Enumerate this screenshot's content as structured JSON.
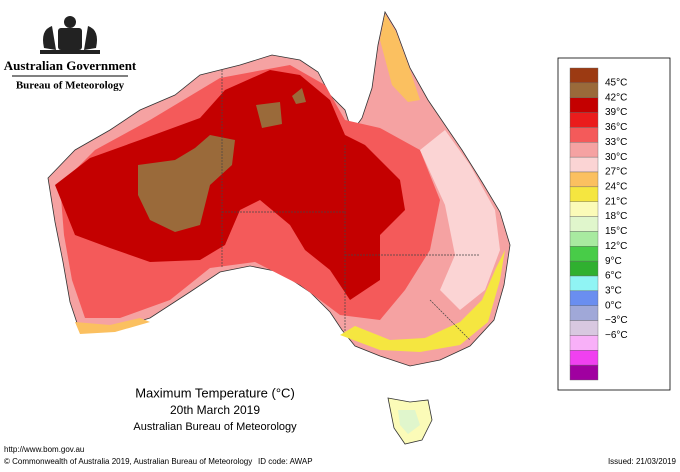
{
  "header": {
    "org": "Australian Government",
    "bureau": "Bureau of Meteorology"
  },
  "map": {
    "title": "Maximum Temperature (°C)",
    "date": "20th March 2019",
    "source": "Australian Bureau of Meteorology"
  },
  "legend": {
    "labels": [
      "45°C",
      "42°C",
      "39°C",
      "36°C",
      "33°C",
      "30°C",
      "27°C",
      "24°C",
      "21°C",
      "18°C",
      "15°C",
      "12°C",
      "9°C",
      "6°C",
      "3°C",
      "0°C",
      "−3°C",
      "−6°C"
    ],
    "colors": [
      "#9c3a12",
      "#9a6a3a",
      "#c40000",
      "#ea1c1c",
      "#f45a5a",
      "#f5a2a2",
      "#fbd4d4",
      "#fbc060",
      "#f5e640",
      "#fbfbb8",
      "#e0f6cc",
      "#a8eaa0",
      "#48cc48",
      "#30b030",
      "#90f4f4",
      "#6a8ef0",
      "#a0a8d8",
      "#d8c8e0",
      "#f8b0f8",
      "#f040f0",
      "#a000a0"
    ]
  },
  "footer": {
    "url": "http://www.bom.gov.au",
    "copyright": "© Commonwealth of Australia 2019, Australian Bureau of Meteorology",
    "id_code": "ID code: AWAP",
    "issued": "Issued: 21/03/2019"
  }
}
